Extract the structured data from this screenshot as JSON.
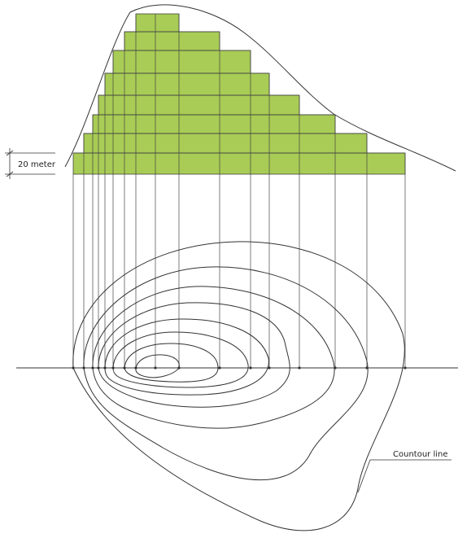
{
  "labels": {
    "interval": "20 meter",
    "contour": "Countour line"
  },
  "colors": {
    "profile_fill": "#a8cc55",
    "line": "#3a3a3a",
    "background": "#ffffff"
  }
}
